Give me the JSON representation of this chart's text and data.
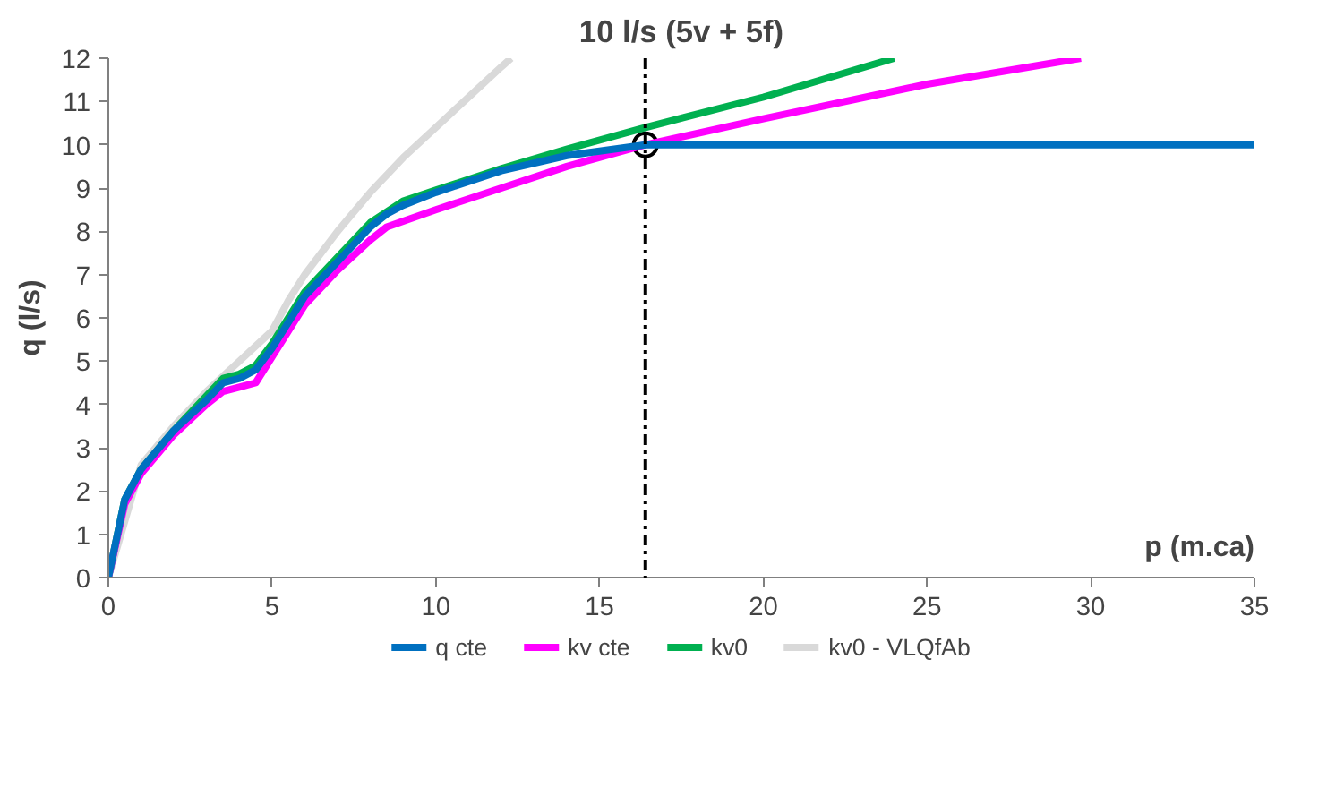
{
  "chart_data": {
    "type": "line",
    "title": "10 l/s (5v + 5f)",
    "xlabel": "p (m.ca)",
    "ylabel": "q (l/s)",
    "xlim": [
      0,
      35
    ],
    "ylim": [
      0,
      12
    ],
    "xticks": [
      0,
      5,
      10,
      15,
      20,
      25,
      30,
      35
    ],
    "yticks": [
      0,
      1,
      2,
      3,
      4,
      5,
      6,
      7,
      8,
      9,
      10,
      11,
      12
    ],
    "grid": false,
    "legend": "bottom",
    "line_style": "solid",
    "series": [
      {
        "name": "q cte",
        "color": "#0070c0",
        "x": [
          0,
          0.5,
          1,
          2,
          3,
          3.5,
          4,
          4.5,
          5,
          5.5,
          6,
          7,
          8,
          8.5,
          9,
          10,
          12,
          14,
          16.4,
          35
        ],
        "values": [
          0,
          1.8,
          2.5,
          3.4,
          4.1,
          4.5,
          4.6,
          4.8,
          5.3,
          5.9,
          6.5,
          7.3,
          8.1,
          8.4,
          8.6,
          8.9,
          9.4,
          9.75,
          10,
          10
        ]
      },
      {
        "name": "kv cte",
        "color": "#ff00ff",
        "x": [
          0,
          0.5,
          1,
          2,
          3,
          3.5,
          4,
          4.5,
          5,
          5.5,
          6,
          7,
          8,
          8.5,
          10,
          12,
          14,
          16.4,
          20,
          25,
          29.7
        ],
        "values": [
          0,
          1.7,
          2.4,
          3.3,
          4.0,
          4.3,
          4.4,
          4.5,
          5.1,
          5.7,
          6.3,
          7.1,
          7.8,
          8.1,
          8.5,
          9.0,
          9.5,
          10,
          10.6,
          11.4,
          12
        ]
      },
      {
        "name": "kv0",
        "color": "#00b050",
        "x": [
          0,
          0.5,
          1,
          2,
          3,
          3.5,
          4,
          4.5,
          5,
          5.5,
          6,
          7,
          8,
          9,
          10,
          12,
          14,
          16.4,
          20,
          24
        ],
        "values": [
          0,
          1.8,
          2.5,
          3.4,
          4.2,
          4.6,
          4.7,
          4.9,
          5.4,
          6.0,
          6.6,
          7.4,
          8.2,
          8.7,
          8.95,
          9.45,
          9.9,
          10.4,
          11.1,
          12
        ]
      },
      {
        "name": "kv0 - VLQfAb",
        "color": "#d9d9d9",
        "x": [
          0,
          1,
          2,
          3,
          4,
          5,
          5.5,
          6,
          7,
          8,
          9,
          10,
          11,
          12,
          12.3
        ],
        "values": [
          0,
          2.6,
          3.5,
          4.3,
          5.0,
          5.7,
          6.4,
          7.0,
          8.0,
          8.9,
          9.7,
          10.4,
          11.1,
          11.8,
          12
        ]
      },
      {
        "type": "scatter",
        "marker": "circle",
        "color": "#ffffff",
        "x": [
          16.4
        ],
        "values": [
          10
        ]
      }
    ],
    "ref_lines": [
      {
        "axis": "x",
        "value": 16.4,
        "color": "#000000",
        "line_style": "dashed"
      }
    ]
  }
}
